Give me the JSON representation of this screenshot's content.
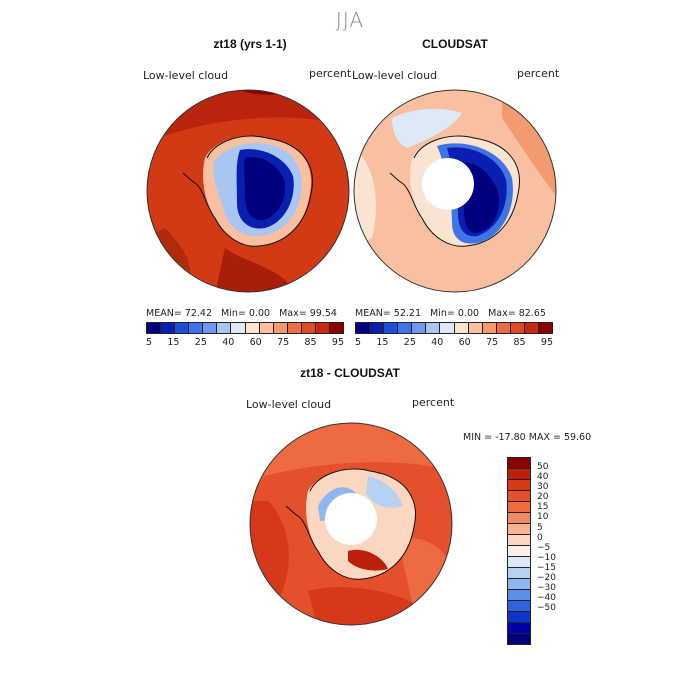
{
  "page": {
    "title": "JJA"
  },
  "panels": {
    "model": {
      "title": "zt18 (yrs 1-1)",
      "left_label": "Low-level cloud",
      "right_label": "percent",
      "stats": {
        "mean_label": "MEAN=",
        "mean": "72.42",
        "min_label": "Min=",
        "min": "0.00",
        "max_label": "Max=",
        "max": "99.54"
      }
    },
    "obs": {
      "title": "CLOUDSAT",
      "left_label": "Low-level cloud",
      "right_label": "percent",
      "stats": {
        "mean_label": "MEAN=",
        "mean": "52.21",
        "min_label": "Min=",
        "min": "0.00",
        "max_label": "Max=",
        "max": "82.65"
      }
    },
    "diff": {
      "title": "zt18 - CLOUDSAT",
      "left_label": "Low-level cloud",
      "right_label": "percent",
      "minmax": "MIN = -17.80 MAX =  59.60"
    }
  },
  "abs_colorbar": {
    "colors": [
      "#00007f",
      "#0a1fb0",
      "#1d4fd6",
      "#3f74e6",
      "#7099ee",
      "#a9c6f2",
      "#dde9f7",
      "#fbe3d2",
      "#f8c0a0",
      "#f39a70",
      "#ea6f45",
      "#de4a25",
      "#c52a12",
      "#8b0000"
    ],
    "tick_labels": [
      "5",
      "15",
      "25",
      "40",
      "60",
      "75",
      "85",
      "95"
    ]
  },
  "diff_colorbar": {
    "colors": [
      "#8b0000",
      "#bc200c",
      "#d6381a",
      "#e5502c",
      "#ee6a40",
      "#f48a62",
      "#f8b393",
      "#fbd6c1",
      "#fdf0e6",
      "#dce8f6",
      "#b6d1f2",
      "#8fb6ee",
      "#5b8ee6",
      "#2f62dd",
      "#0d36c8",
      "#0000a8",
      "#00007a"
    ],
    "tick_labels": [
      "50",
      "40",
      "30",
      "20",
      "15",
      "10",
      "5",
      "0",
      "−5",
      "−10",
      "−15",
      "−20",
      "−30",
      "−40",
      "−50"
    ]
  }
}
